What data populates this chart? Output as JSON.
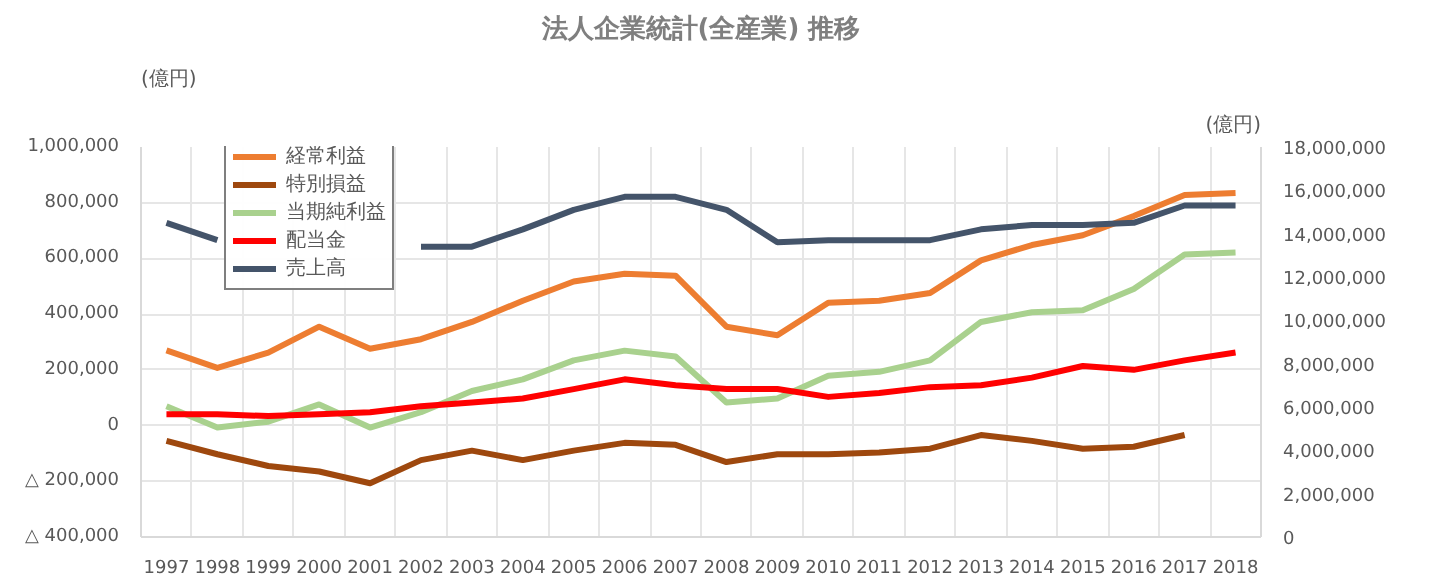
{
  "chart_data": {
    "type": "line",
    "title": "法人企業統計(全産業) 推移",
    "ylabel": "(億円)",
    "y2label": "(億円)",
    "categories": [
      "1997",
      "1998",
      "1999",
      "2000",
      "2001",
      "2002",
      "2003",
      "2004",
      "2005",
      "2006",
      "2007",
      "2008",
      "2009",
      "2010",
      "2011",
      "2012",
      "2013",
      "2014",
      "2015",
      "2016",
      "2017",
      "2018"
    ],
    "series": [
      {
        "name": "経常利益",
        "color": "#ed7d31",
        "values": [
          270000,
          207000,
          262000,
          355000,
          276000,
          310000,
          372000,
          448000,
          517000,
          545000,
          538000,
          355000,
          324000,
          441000,
          448000,
          476000,
          593000,
          648000,
          683000,
          752000,
          828000,
          835000
        ]
      },
      {
        "name": "特別損益",
        "color": "#9e480e",
        "values": [
          -55000,
          -103000,
          -145000,
          -165000,
          -207000,
          -124000,
          -90000,
          -124000,
          -90000,
          -62000,
          -69000,
          -131000,
          -103000,
          -103000,
          -97000,
          -83000,
          -34000,
          -55000,
          -83000,
          -76000,
          -34000,
          null
        ]
      },
      {
        "name": "当期純利益",
        "color": "#a9d18e",
        "values": [
          69000,
          -7000,
          14000,
          76000,
          -7000,
          48000,
          124000,
          166000,
          234000,
          269000,
          248000,
          83000,
          97000,
          179000,
          193000,
          234000,
          372000,
          407000,
          414000,
          490000,
          614000,
          621000
        ]
      },
      {
        "name": "配当金",
        "color": "#ff0000",
        "values": [
          41000,
          41000,
          34000,
          41000,
          48000,
          69000,
          83000,
          97000,
          131000,
          166000,
          145000,
          131000,
          131000,
          103000,
          117000,
          138000,
          145000,
          172000,
          214000,
          200000,
          234000,
          262000
        ]
      },
      {
        "name": "売上高",
        "color": "#44546a",
        "axis": "y2",
        "values": [
          14500000,
          13700000,
          null,
          null,
          null,
          13400000,
          13400000,
          14200000,
          15100000,
          15700000,
          15700000,
          15100000,
          13600000,
          13700000,
          13700000,
          13700000,
          14200000,
          14400000,
          14400000,
          14500000,
          15300000,
          15300000
        ]
      }
    ],
    "ylim": [
      -400000,
      1000000
    ],
    "yticks": [
      {
        "value": -400000,
        "label": "△ 400,000"
      },
      {
        "value": -200000,
        "label": "△ 200,000"
      },
      {
        "value": 0,
        "label": "0"
      },
      {
        "value": 200000,
        "label": "200,000"
      },
      {
        "value": 400000,
        "label": "400,000"
      },
      {
        "value": 600000,
        "label": "600,000"
      },
      {
        "value": 800000,
        "label": "800,000"
      },
      {
        "value": 1000000,
        "label": "1,000,000"
      }
    ],
    "y2lim": [
      0,
      18000000
    ],
    "y2ticks": [
      {
        "value": 0,
        "label": "0"
      },
      {
        "value": 2000000,
        "label": "2,000,000"
      },
      {
        "value": 4000000,
        "label": "4,000,000"
      },
      {
        "value": 6000000,
        "label": "6,000,000"
      },
      {
        "value": 8000000,
        "label": "8,000,000"
      },
      {
        "value": 10000000,
        "label": "10,000,000"
      },
      {
        "value": 12000000,
        "label": "12,000,000"
      },
      {
        "value": 14000000,
        "label": "14,000,000"
      },
      {
        "value": 16000000,
        "label": "16,000,000"
      },
      {
        "value": 18000000,
        "label": "18,000,000"
      }
    ],
    "grid": true,
    "legend": "top left",
    "marker": "none",
    "line_style": "solid"
  }
}
